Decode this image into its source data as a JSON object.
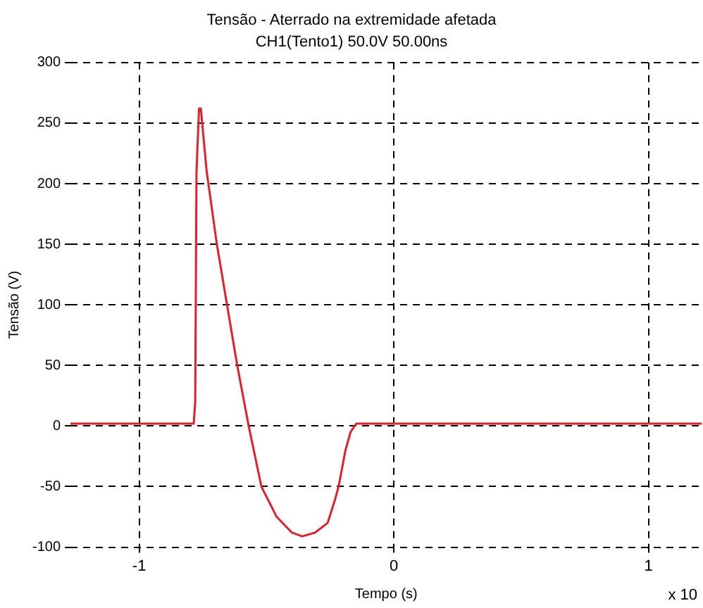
{
  "chart_data": {
    "type": "line",
    "title": "Tensão - Aterrado na extremidade afetada",
    "subtitle": "CH1(Tento1) 50.0V 50.00ns",
    "xlabel": "Tempo (s)",
    "ylabel": "Tensão (V)",
    "annotations": [
      "x 10"
    ],
    "x": [
      -1.27,
      -1.1,
      -0.95,
      -0.786,
      -0.78,
      -0.775,
      -0.765,
      -0.758,
      -0.735,
      -0.695,
      -0.655,
      -0.615,
      -0.57,
      -0.52,
      -0.46,
      -0.4,
      -0.36,
      -0.31,
      -0.26,
      -0.23,
      -0.217,
      -0.19,
      -0.17,
      -0.148,
      0,
      0.5,
      1.21
    ],
    "series": [
      {
        "color": "#e0202a",
        "values": [
          2,
          2,
          2,
          2,
          20,
          210,
          262,
          262,
          210,
          150,
          100,
          50,
          0,
          -50,
          -75,
          -88,
          -91,
          -88,
          -80,
          -60,
          -50,
          -20,
          -5,
          2,
          2,
          2,
          2
        ]
      }
    ],
    "xlim": [
      -1.27,
      1.21
    ],
    "xticks": [
      -1,
      0,
      1
    ],
    "ylim": [
      -100,
      300
    ],
    "yticks": [
      -100,
      -50,
      0,
      50,
      100,
      150,
      200,
      250,
      300
    ],
    "grid": true,
    "line_style": "solid",
    "marker": "none",
    "legend": false
  }
}
